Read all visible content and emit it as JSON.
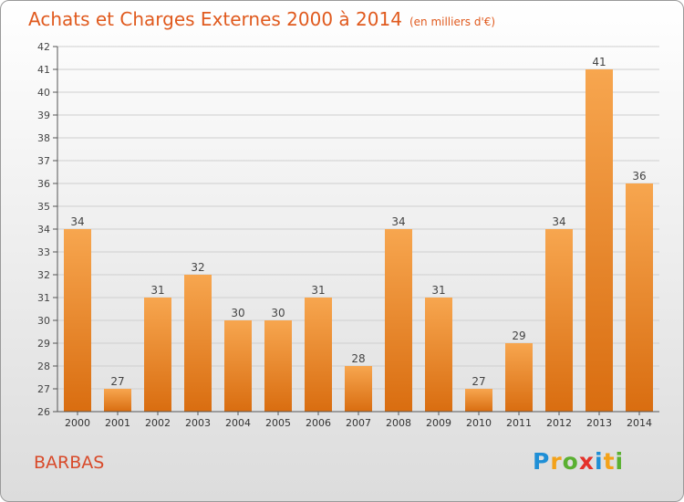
{
  "header": {
    "title": "Achats et Charges Externes 2000 à 2014",
    "unit": "(en milliers d'€)"
  },
  "footer": {
    "commune": "BARBAS",
    "logo": "Proxiti",
    "logo_letters": [
      {
        "char": "P",
        "color": "#1f8fd6"
      },
      {
        "char": "r",
        "color": "#f3a21a"
      },
      {
        "char": "o",
        "color": "#5ab031"
      },
      {
        "char": "x",
        "color": "#e4322a"
      },
      {
        "char": "i",
        "color": "#1f8fd6"
      },
      {
        "char": "t",
        "color": "#f3a21a"
      },
      {
        "char": "i",
        "color": "#5ab031"
      }
    ]
  },
  "chart_data": {
    "type": "bar",
    "title": "Achats et Charges Externes 2000 à 2014",
    "categories": [
      "2000",
      "2001",
      "2002",
      "2003",
      "2004",
      "2005",
      "2006",
      "2007",
      "2008",
      "2009",
      "2010",
      "2011",
      "2012",
      "2013",
      "2014"
    ],
    "values": [
      34,
      27,
      31,
      32,
      30,
      30,
      31,
      28,
      34,
      31,
      27,
      29,
      34,
      41,
      36
    ],
    "ylim": [
      26,
      42
    ],
    "yticks": [
      26,
      27,
      28,
      29,
      30,
      31,
      32,
      33,
      34,
      35,
      36,
      37,
      38,
      39,
      40,
      41,
      42
    ],
    "grid": true,
    "bar_color_light": "#f7a64f",
    "bar_color_dark": "#d96d10",
    "data_labels": true
  }
}
